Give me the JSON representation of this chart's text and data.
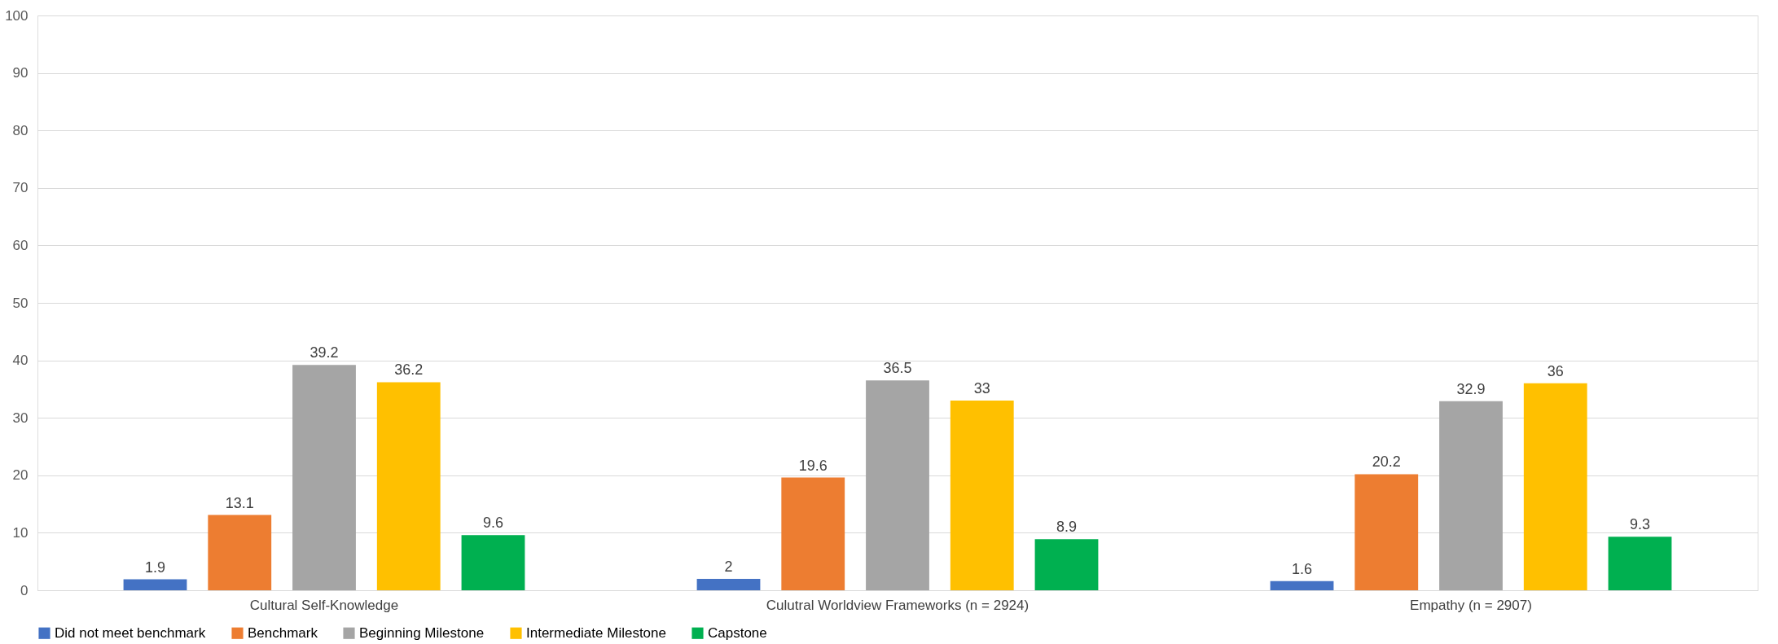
{
  "chart_data": {
    "type": "bar",
    "categories": [
      "Cultural Self-Knowledge",
      "Culutral Worldview Frameworks (n = 2924)",
      "Empathy (n = 2907)"
    ],
    "series": [
      {
        "name": "Did not meet benchmark",
        "color": "#4472c4",
        "values": [
          1.9,
          2,
          1.6
        ]
      },
      {
        "name": "Benchmark",
        "color": "#ed7d31",
        "values": [
          13.1,
          19.6,
          20.2
        ]
      },
      {
        "name": "Beginning Milestone",
        "color": "#a5a5a5",
        "values": [
          39.2,
          36.5,
          32.9
        ]
      },
      {
        "name": "Intermediate Milestone",
        "color": "#ffc000",
        "values": [
          36.2,
          33,
          36
        ]
      },
      {
        "name": "Capstone",
        "color": "#00b050",
        "values": [
          9.6,
          8.9,
          9.3
        ]
      }
    ],
    "ylim": [
      0,
      100
    ],
    "yticks": [
      0,
      10,
      20,
      30,
      40,
      50,
      60,
      70,
      80,
      90,
      100
    ],
    "grid": "y",
    "legend": "bottom",
    "data_labels": true
  }
}
